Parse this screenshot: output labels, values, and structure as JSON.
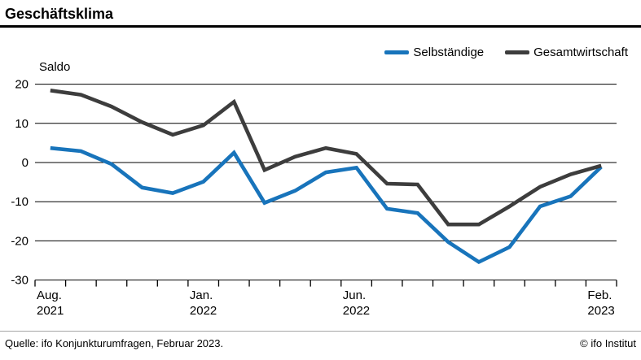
{
  "header": {
    "title": "Geschäftsklima"
  },
  "footer": {
    "source": "Quelle: ifo Konjunkturumfragen, Februar 2023.",
    "copyright": "© ifo Institut"
  },
  "chart_data": {
    "type": "line",
    "title": "Geschäftsklima",
    "ylabel": "Saldo",
    "ylim": [
      -30,
      20
    ],
    "yticks": [
      20,
      10,
      0,
      -10,
      -20,
      -30
    ],
    "grid": true,
    "legend_position": "top-right",
    "x_axis": {
      "unit": "month",
      "boundary_tick_count": 20,
      "labels": [
        {
          "index": 0,
          "line1": "Aug.",
          "line2": "2021"
        },
        {
          "index": 5,
          "line1": "Jan.",
          "line2": "2022"
        },
        {
          "index": 10,
          "line1": "Jun.",
          "line2": "2022"
        },
        {
          "index": 18,
          "line1": "Feb.",
          "line2": "2023"
        }
      ]
    },
    "x_months_implied": [
      "Aug 2021",
      "Sep 2021",
      "Okt 2021",
      "Nov 2021",
      "Dez 2021",
      "Jan 2022",
      "Feb 2022",
      "Mär 2022",
      "Apr 2022",
      "Mai 2022",
      "Jun 2022",
      "Jul 2022",
      "Aug 2022",
      "Sep 2022",
      "Okt 2022",
      "Nov 2022",
      "Dez 2022",
      "Jan 2023",
      "Feb 2023"
    ],
    "series": [
      {
        "name": "Selbständige",
        "color": "#1874bb",
        "values": [
          3.7,
          2.9,
          -0.4,
          -6.4,
          -7.8,
          -4.9,
          2.5,
          -10.3,
          -7.2,
          -2.5,
          -1.3,
          -11.8,
          -12.9,
          -20.3,
          -25.4,
          -21.6,
          -11.2,
          -8.6,
          -1.1
        ]
      },
      {
        "name": "Gesamtwirtschaft",
        "color": "#3d3d3d",
        "values": [
          18.4,
          17.3,
          14.3,
          10.3,
          7.1,
          9.5,
          15.5,
          -1.9,
          1.5,
          3.7,
          2.2,
          -5.4,
          -5.6,
          -15.8,
          -15.8,
          -11.2,
          -6.2,
          -3.0,
          -0.8
        ]
      }
    ],
    "colors": {
      "axis": "#000000",
      "grid": "#000000",
      "footer_rule": "#a6a6a6"
    }
  }
}
